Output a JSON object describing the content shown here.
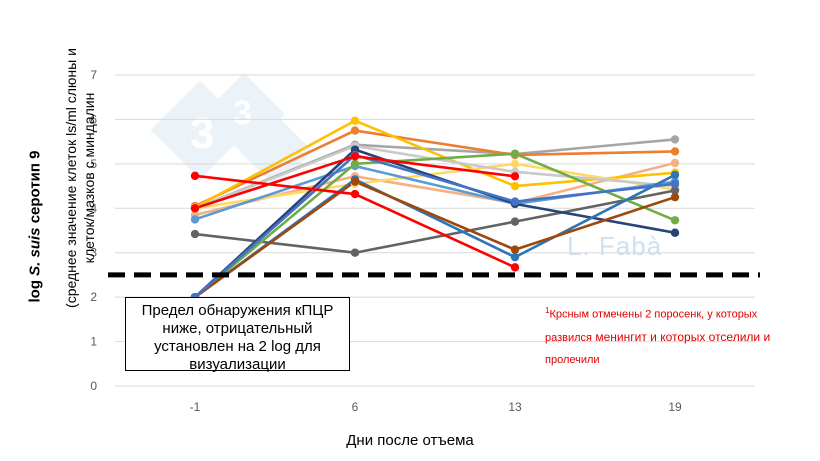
{
  "chart_data": {
    "type": "line",
    "title": "",
    "xlabel": "Дни после отъема",
    "ylabel_main": "log S. suis серотип 9",
    "ylabel_main_prefix": "log",
    "ylabel_main_species": "S. suis",
    "ylabel_main_suffix": "серотип 9",
    "ylabel_sub": "(среднее значение  клеток ls/ml слюны и клеток/мазков с миндалин",
    "categories": [
      "-1",
      "6",
      "13",
      "19"
    ],
    "ylim": [
      0,
      7
    ],
    "yticks": [
      "0",
      "1",
      "2",
      "3",
      "4",
      "5",
      "6",
      "7"
    ],
    "grid": true,
    "detection_limit": 2.5,
    "series": [
      {
        "name": "gray",
        "color": "#a6a6a6",
        "values": [
          4.0,
          5.43,
          5.22,
          5.55
        ]
      },
      {
        "name": "orange",
        "color": "#ed7d31",
        "values": [
          4.05,
          5.75,
          5.2,
          5.28
        ]
      },
      {
        "name": "light-orange",
        "color": "#f4b183",
        "values": [
          3.85,
          4.72,
          4.12,
          5.02
        ]
      },
      {
        "name": "yellow",
        "color": "#ffc000",
        "values": [
          4.02,
          5.97,
          4.5,
          4.8
        ]
      },
      {
        "name": "gold",
        "color": "#ffd966",
        "values": [
          4.0,
          4.55,
          5.0,
          4.42
        ]
      },
      {
        "name": "light-gray",
        "color": "#c9c9c9",
        "values": [
          4.0,
          5.4,
          4.82,
          4.5
        ]
      },
      {
        "name": "light-blue",
        "color": "#5b9bd5",
        "values": [
          3.75,
          4.95,
          4.1,
          4.6
        ]
      },
      {
        "name": "dark-gray",
        "color": "#636363",
        "values": [
          3.42,
          3.0,
          3.7,
          4.4
        ]
      },
      {
        "name": "green",
        "color": "#70ad47",
        "values": [
          2.0,
          5.0,
          5.23,
          3.73
        ]
      },
      {
        "name": "navy",
        "color": "#264478",
        "values": [
          2.0,
          5.32,
          4.1,
          3.45
        ]
      },
      {
        "name": "blue",
        "color": "#2e75b6",
        "values": [
          2.0,
          4.65,
          2.9,
          4.75
        ]
      },
      {
        "name": "brown",
        "color": "#9e480e",
        "values": [
          2.0,
          4.6,
          3.07,
          4.25
        ]
      },
      {
        "name": "teal",
        "color": "#4472c4",
        "values": [
          2.0,
          5.2,
          4.15,
          4.55
        ]
      },
      {
        "name": "red-1",
        "color": "#ff0000",
        "values": [
          4.73,
          4.32,
          2.67,
          null
        ]
      },
      {
        "name": "red-2",
        "color": "#ff0000",
        "values": [
          4.0,
          5.17,
          4.72,
          null
        ]
      }
    ]
  },
  "lod_text": "Предел обнаружения кПЦР ниже, отрицательный установлен на 2 log для визуализации",
  "note": {
    "sup": "1",
    "line1": "Крсным отмечены 2 поросенк, у которых",
    "line2a": "развился",
    "line2b": " менингит и которых отселили и",
    "line3": "пролечили"
  },
  "watermark": {
    "logo_text": "333",
    "author": "L. Fabà"
  }
}
